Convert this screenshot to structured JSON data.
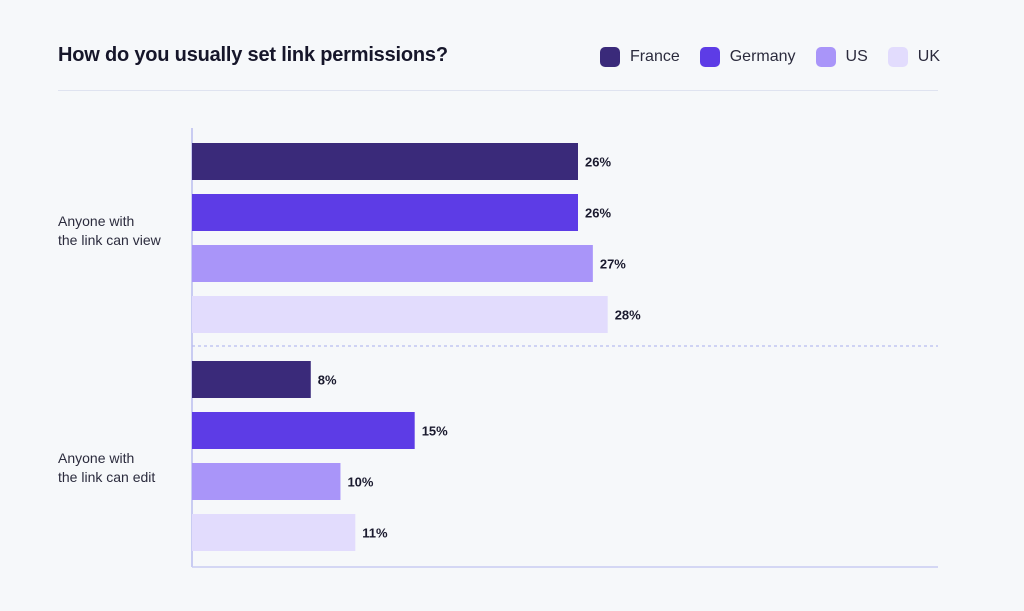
{
  "title": "How do you usually set link permissions?",
  "legend": [
    {
      "name": "France",
      "color": "#3a2a7a"
    },
    {
      "name": "Germany",
      "color": "#5d3ce6"
    },
    {
      "name": "US",
      "color": "#a995f9"
    },
    {
      "name": "UK",
      "color": "#e2dcfd"
    }
  ],
  "chart_data": {
    "type": "bar",
    "orientation": "horizontal",
    "title": "How do you usually set link permissions?",
    "categories": [
      {
        "line1": "Anyone with",
        "line2": "the link can view"
      },
      {
        "line1": "Anyone with",
        "line2": "the link can edit"
      }
    ],
    "category_names": [
      "Anyone with the link can view",
      "Anyone with the link can edit"
    ],
    "series": [
      {
        "name": "France",
        "color": "#3a2a7a",
        "values": [
          26,
          8
        ]
      },
      {
        "name": "Germany",
        "color": "#5d3ce6",
        "values": [
          26,
          15
        ]
      },
      {
        "name": "US",
        "color": "#a995f9",
        "values": [
          27,
          10
        ]
      },
      {
        "name": "UK",
        "color": "#e2dcfd",
        "values": [
          28,
          11
        ]
      }
    ],
    "value_suffix": "%",
    "xlim": [
      0,
      50
    ],
    "grid": false,
    "legend_position": "top-right"
  }
}
